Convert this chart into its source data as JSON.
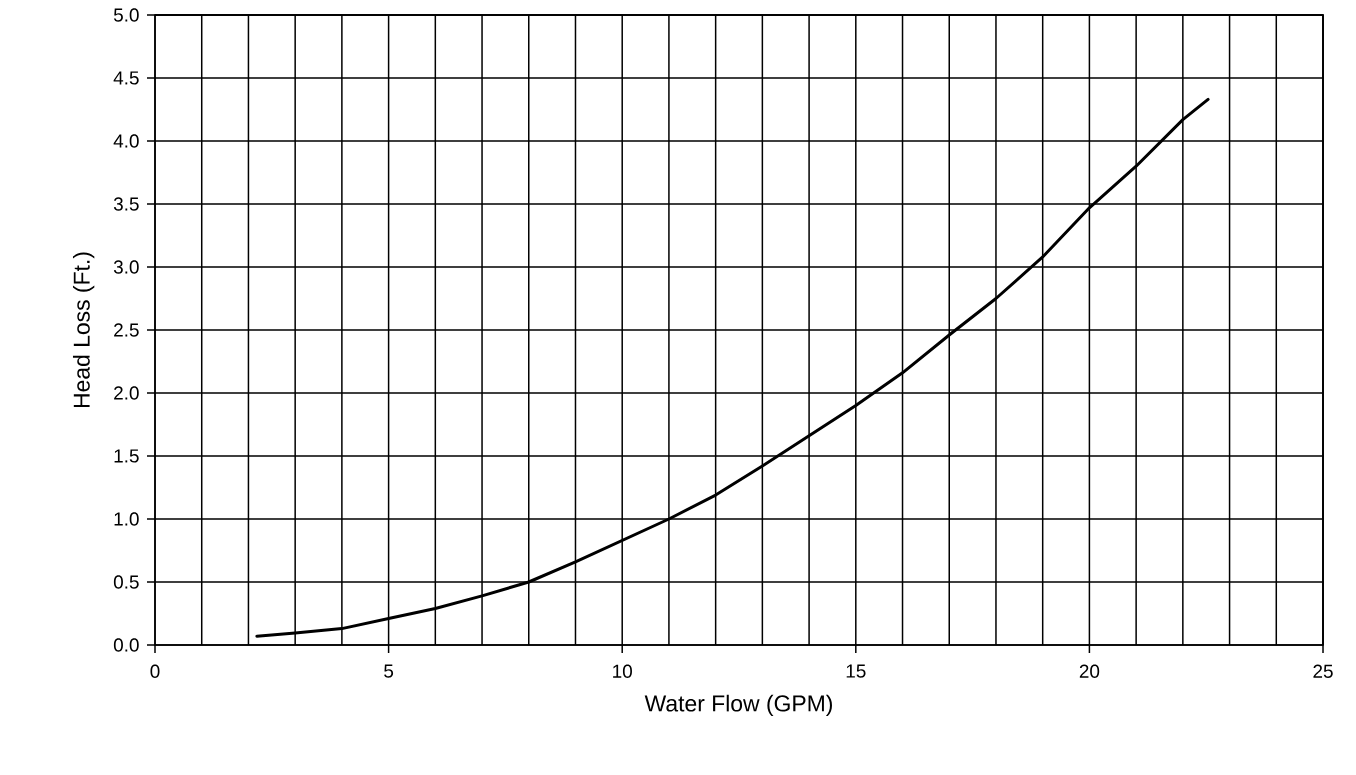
{
  "chart_data": {
    "type": "line",
    "xlabel": "Water Flow (GPM)",
    "ylabel": "Head Loss (Ft.)",
    "x": [
      2.18,
      3,
      4,
      5,
      6,
      7,
      8,
      9,
      10,
      11,
      12,
      13,
      14,
      15,
      16,
      17,
      18,
      19,
      20,
      21,
      22,
      22.54
    ],
    "series": [
      {
        "color": "#000000",
        "values": [
          0.07,
          0.095,
          0.13,
          0.21,
          0.29,
          0.39,
          0.5,
          0.66,
          0.83,
          1.0,
          1.19,
          1.42,
          1.66,
          1.9,
          2.16,
          2.46,
          2.75,
          3.08,
          3.47,
          3.8,
          4.17,
          4.33
        ]
      }
    ],
    "xlim": [
      0,
      25
    ],
    "ylim": [
      0,
      5
    ],
    "xticks": [
      0,
      {
        "value": 1,
        "label": null
      },
      {
        "value": 2,
        "label": null
      },
      {
        "value": 3,
        "label": null
      },
      {
        "value": 4,
        "label": null
      },
      5,
      {
        "value": 6,
        "label": null
      },
      {
        "value": 7,
        "label": null
      },
      {
        "value": 8,
        "label": null
      },
      {
        "value": 9,
        "label": null
      },
      10,
      {
        "value": 11,
        "label": null
      },
      {
        "value": 12,
        "label": null
      },
      {
        "value": 13,
        "label": null
      },
      {
        "value": 14,
        "label": null
      },
      15,
      {
        "value": 16,
        "label": null
      },
      {
        "value": 17,
        "label": null
      },
      {
        "value": 18,
        "label": null
      },
      {
        "value": 19,
        "label": null
      },
      20,
      {
        "value": 21,
        "label": null
      },
      {
        "value": 22,
        "label": null
      },
      {
        "value": 23,
        "label": null
      },
      {
        "value": 24,
        "label": null
      },
      25
    ],
    "yticks": [
      {
        "value": 0,
        "label": "0.0"
      },
      {
        "value": 0.5,
        "label": "0.5"
      },
      {
        "value": 1,
        "label": "1.0"
      },
      {
        "value": 1.5,
        "label": "1.5"
      },
      {
        "value": 2,
        "label": "2.0"
      },
      {
        "value": 2.5,
        "label": "2.5"
      },
      {
        "value": 3,
        "label": "3.0"
      },
      {
        "value": 3.5,
        "label": "3.5"
      },
      {
        "value": 4,
        "label": "4.0"
      },
      {
        "value": 4.5,
        "label": "4.5"
      },
      {
        "value": 5,
        "label": "5.0"
      }
    ],
    "grid": true,
    "marker": "none",
    "line_style": "solid"
  }
}
